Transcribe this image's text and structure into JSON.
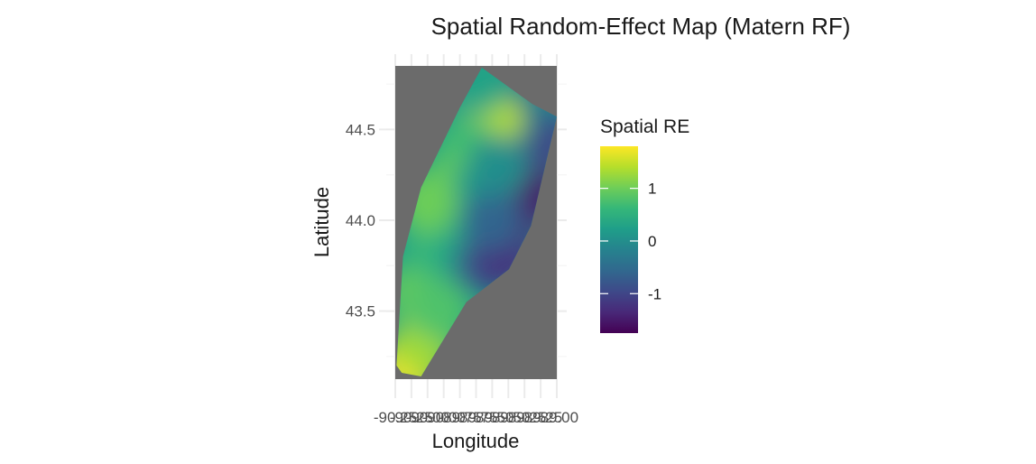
{
  "chart_data": {
    "type": "heatmap",
    "title": "Spatial Random-Effect Map (Matern RF)",
    "xlabel": "Longitude",
    "ylabel": "Latitude",
    "xlim": [
      -90.25,
      -89.0
    ],
    "ylim": [
      43.125,
      44.85
    ],
    "x_ticks": [
      -90.25,
      -90.125,
      -90.0,
      -89.875,
      -89.75,
      -89.625,
      -89.5,
      -89.375,
      -89.25,
      -89.125,
      -89.0
    ],
    "x_tick_labels": [
      "-90.25",
      "-90.00",
      "-89.75",
      "-89.50",
      "-89.25",
      "-89.00"
    ],
    "y_ticks": [
      43.5,
      44.0,
      44.5
    ],
    "y_tick_labels": [
      "43.5",
      "44.0",
      "44.5"
    ],
    "grid": true,
    "panel_background": "#6b6b6b",
    "region_polygon": [
      {
        "lon": -90.24,
        "lat": 43.2
      },
      {
        "lon": -90.2,
        "lat": 43.16
      },
      {
        "lon": -90.05,
        "lat": 43.14
      },
      {
        "lon": -89.7,
        "lat": 43.55
      },
      {
        "lon": -89.37,
        "lat": 43.73
      },
      {
        "lon": -89.2,
        "lat": 43.97
      },
      {
        "lon": -89.0,
        "lat": 44.57
      },
      {
        "lon": -89.19,
        "lat": 44.64
      },
      {
        "lon": -89.58,
        "lat": 44.84
      },
      {
        "lon": -89.75,
        "lat": 44.62
      },
      {
        "lon": -90.05,
        "lat": 44.18
      },
      {
        "lon": -90.19,
        "lat": 43.8
      }
    ],
    "field_points": [
      {
        "lon": -90.15,
        "lat": 43.2,
        "value": 1.8
      },
      {
        "lon": -90.05,
        "lat": 43.3,
        "value": 1.3
      },
      {
        "lon": -90.1,
        "lat": 43.6,
        "value": 0.9
      },
      {
        "lon": -89.9,
        "lat": 43.5,
        "value": 0.8
      },
      {
        "lon": -89.95,
        "lat": 43.85,
        "value": 0.6
      },
      {
        "lon": -89.7,
        "lat": 43.8,
        "value": 0.3
      },
      {
        "lon": -89.55,
        "lat": 43.75,
        "value": -0.8
      },
      {
        "lon": -89.4,
        "lat": 43.8,
        "value": -1.2
      },
      {
        "lon": -89.35,
        "lat": 44.0,
        "value": -1.3
      },
      {
        "lon": -89.2,
        "lat": 44.15,
        "value": -1.5
      },
      {
        "lon": -89.1,
        "lat": 44.45,
        "value": -1.0
      },
      {
        "lon": -89.3,
        "lat": 44.6,
        "value": -0.4
      },
      {
        "lon": -89.5,
        "lat": 44.55,
        "value": 1.4
      },
      {
        "lon": -89.6,
        "lat": 44.75,
        "value": 0.3
      },
      {
        "lon": -89.7,
        "lat": 44.4,
        "value": 0.7
      },
      {
        "lon": -89.8,
        "lat": 44.2,
        "value": 0.9
      },
      {
        "lon": -89.6,
        "lat": 44.15,
        "value": 0.2
      },
      {
        "lon": -89.5,
        "lat": 44.0,
        "value": -0.6
      },
      {
        "lon": -90.0,
        "lat": 44.1,
        "value": 1.0
      },
      {
        "lon": -89.45,
        "lat": 44.3,
        "value": 0.0
      }
    ],
    "legend": {
      "title": "Spatial RE",
      "placement": "right",
      "range": [
        -1.75,
        1.8
      ],
      "ticks": [
        1,
        0,
        -1
      ],
      "tick_labels": [
        "1",
        "0",
        "-1"
      ],
      "colors": [
        "#440154",
        "#482878",
        "#3e4989",
        "#31688e",
        "#26828e",
        "#1f9e89",
        "#35b779",
        "#6ece58",
        "#b5de2b",
        "#fde725"
      ]
    }
  }
}
